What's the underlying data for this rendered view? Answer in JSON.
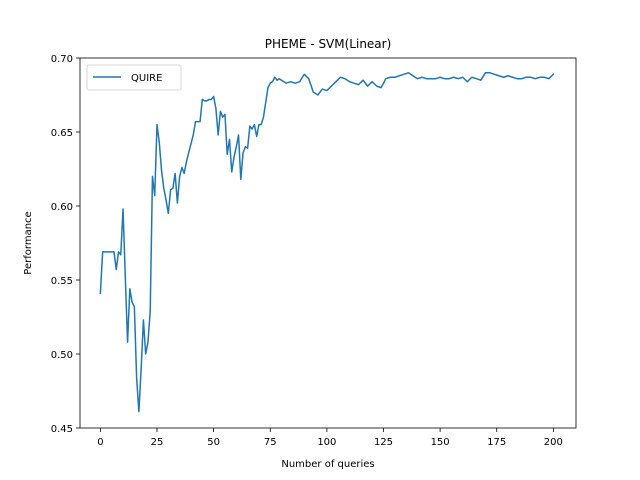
{
  "chart_data": {
    "type": "line",
    "title": "PHEME - SVM(Linear)",
    "xlabel": "Number of queries",
    "ylabel": "Performance",
    "xlim": [
      -9,
      210
    ],
    "ylim": [
      0.45,
      0.7
    ],
    "xticks": [
      0,
      25,
      50,
      75,
      100,
      125,
      150,
      175,
      200
    ],
    "yticks": [
      0.45,
      0.5,
      0.55,
      0.6,
      0.65,
      0.7
    ],
    "xtick_labels": [
      "0",
      "25",
      "50",
      "75",
      "100",
      "125",
      "150",
      "175",
      "200"
    ],
    "ytick_labels": [
      "0.45",
      "0.50",
      "0.55",
      "0.60",
      "0.65",
      "0.70"
    ],
    "grid": false,
    "legend_position": "top-left",
    "series": [
      {
        "name": "QUIRE",
        "color": "#1f77b4",
        "x": [
          0,
          1,
          2,
          3,
          4,
          5,
          6,
          7,
          8,
          9,
          10,
          11,
          12,
          13,
          14,
          15,
          16,
          17,
          18,
          19,
          20,
          21,
          22,
          23,
          24,
          25,
          26,
          27,
          28,
          29,
          30,
          31,
          32,
          33,
          34,
          35,
          36,
          37,
          38,
          39,
          40,
          41,
          42,
          43,
          44,
          45,
          46,
          47,
          48,
          49,
          50,
          51,
          52,
          53,
          54,
          55,
          56,
          57,
          58,
          59,
          60,
          61,
          62,
          63,
          64,
          65,
          66,
          67,
          68,
          69,
          70,
          71,
          72,
          73,
          74,
          75,
          76,
          77,
          78,
          79,
          80,
          82,
          84,
          86,
          88,
          90,
          92,
          94,
          96,
          98,
          100,
          102,
          104,
          106,
          108,
          110,
          112,
          114,
          116,
          118,
          120,
          122,
          124,
          126,
          128,
          130,
          132,
          134,
          136,
          138,
          140,
          142,
          144,
          146,
          148,
          150,
          152,
          154,
          156,
          158,
          160,
          162,
          164,
          166,
          168,
          170,
          172,
          174,
          176,
          178,
          180,
          182,
          184,
          186,
          188,
          190,
          192,
          194,
          196,
          198,
          200
        ],
        "y": [
          0.541,
          0.569,
          0.569,
          0.569,
          0.569,
          0.569,
          0.569,
          0.557,
          0.569,
          0.567,
          0.598,
          0.552,
          0.508,
          0.544,
          0.535,
          0.532,
          0.484,
          0.461,
          0.49,
          0.523,
          0.5,
          0.508,
          0.529,
          0.62,
          0.607,
          0.655,
          0.643,
          0.624,
          0.612,
          0.604,
          0.595,
          0.611,
          0.612,
          0.622,
          0.602,
          0.62,
          0.626,
          0.622,
          0.63,
          0.636,
          0.642,
          0.648,
          0.657,
          0.657,
          0.657,
          0.672,
          0.671,
          0.671,
          0.672,
          0.672,
          0.674,
          0.666,
          0.648,
          0.664,
          0.66,
          0.662,
          0.635,
          0.645,
          0.623,
          0.633,
          0.64,
          0.648,
          0.618,
          0.636,
          0.64,
          0.639,
          0.654,
          0.652,
          0.655,
          0.647,
          0.655,
          0.655,
          0.66,
          0.67,
          0.68,
          0.683,
          0.684,
          0.687,
          0.685,
          0.686,
          0.685,
          0.683,
          0.684,
          0.683,
          0.684,
          0.689,
          0.686,
          0.677,
          0.675,
          0.679,
          0.678,
          0.681,
          0.684,
          0.687,
          0.686,
          0.684,
          0.683,
          0.682,
          0.685,
          0.681,
          0.684,
          0.681,
          0.68,
          0.686,
          0.687,
          0.687,
          0.688,
          0.689,
          0.69,
          0.688,
          0.686,
          0.687,
          0.686,
          0.686,
          0.686,
          0.687,
          0.686,
          0.686,
          0.687,
          0.686,
          0.687,
          0.684,
          0.687,
          0.686,
          0.685,
          0.69,
          0.69,
          0.689,
          0.688,
          0.687,
          0.688,
          0.687,
          0.686,
          0.686,
          0.687,
          0.687,
          0.686,
          0.687,
          0.687,
          0.686,
          0.689
        ]
      }
    ]
  }
}
